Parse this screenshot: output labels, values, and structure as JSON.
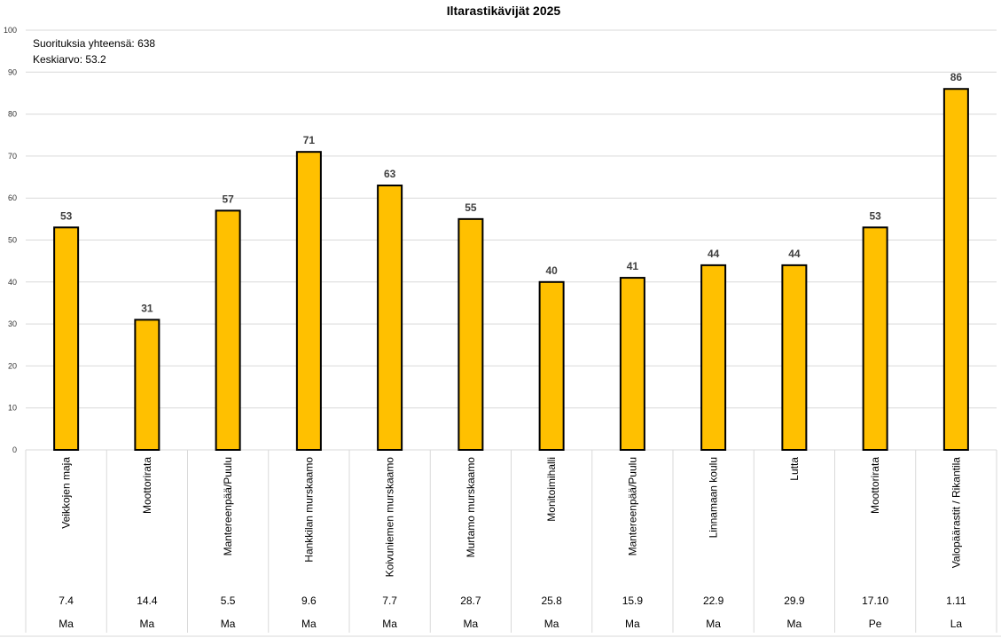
{
  "chart_data": {
    "type": "bar",
    "title": "Iltarastikävijät 2025",
    "ylim": [
      0,
      100
    ],
    "yticks": [
      0,
      10,
      20,
      30,
      40,
      50,
      60,
      70,
      80,
      90,
      100
    ],
    "categories": [
      "Veikkojen maja",
      "Moottorirata",
      "Mantereenpää/Puulu",
      "Hankkilan murskaamo",
      "Koivuniemen murskaamo",
      "Murtamo murskaamo",
      "Monitoimihalli",
      "Mantereenpää/Puulu",
      "Linnamaan koulu",
      "Lutta",
      "Moottorirata",
      "Valopäärastit / Rikantila"
    ],
    "values": [
      53,
      31,
      57,
      71,
      63,
      55,
      40,
      41,
      44,
      44,
      53,
      86
    ],
    "dates": [
      "7.4",
      "14.4",
      "5.5",
      "9.6",
      "7.7",
      "28.7",
      "25.8",
      "15.9",
      "22.9",
      "29.9",
      "17.10",
      "1.11"
    ],
    "weekdays": [
      "Ma",
      "Ma",
      "Ma",
      "Ma",
      "Ma",
      "Ma",
      "Ma",
      "Ma",
      "Ma",
      "Ma",
      "Pe",
      "La"
    ],
    "bar_color": "#FFC000",
    "bar_border": "#000000",
    "annotations": {
      "total": "Suorituksia yhteensä: 638",
      "average": "Keskiarvo: 53.2"
    }
  }
}
